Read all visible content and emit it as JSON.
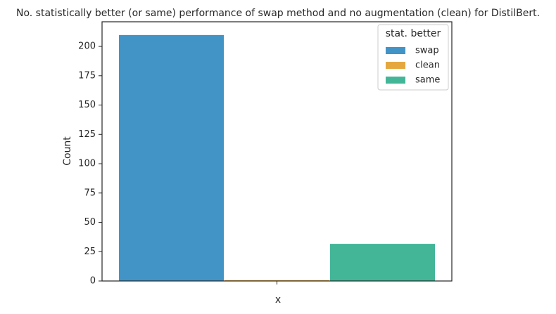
{
  "chart_data": {
    "type": "bar",
    "title": "No. statistically better (or same) performance of swap method and no augmentation (clean) for DistilBert.",
    "xlabel": "x",
    "ylabel": "Count",
    "ylim": [
      0,
      221
    ],
    "yticks": [
      0,
      25,
      50,
      75,
      100,
      125,
      150,
      175,
      200
    ],
    "grid": false,
    "legend": {
      "title": "stat. better",
      "placement": "top-right"
    },
    "series": [
      {
        "name": "swap",
        "value": 210,
        "color": "#4394c6"
      },
      {
        "name": "clean",
        "value": 1,
        "color": "#e5a83f"
      },
      {
        "name": "same",
        "value": 32,
        "color": "#43b698"
      }
    ]
  }
}
